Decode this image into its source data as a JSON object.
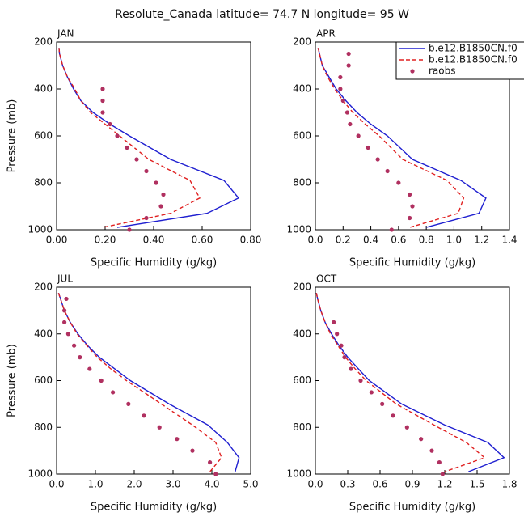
{
  "title": "Resolute_Canada  latitude= 74.7 N longitude= 95 W",
  "chart_data": [
    {
      "type": "line",
      "label": "JAN",
      "xlabel": "Specific Humidity (g/kg)",
      "ylabel": "Pressure (mb)",
      "xlim": [
        0,
        0.8
      ],
      "xticks": [
        {
          "value": 0,
          "label": "0.00"
        },
        {
          "value": 0.2,
          "label": "0.20"
        },
        {
          "value": 0.4,
          "label": "0.40"
        },
        {
          "value": 0.6,
          "label": "0.60"
        },
        {
          "value": 0.8,
          "label": "0.80"
        }
      ],
      "ylim": [
        1000,
        200
      ],
      "yticks": [
        200,
        400,
        600,
        800,
        1000
      ],
      "series": [
        {
          "color": "#1f1fd0",
          "style": "solid",
          "pressure": [
            225,
            250,
            300,
            350,
            400,
            450,
            500,
            550,
            600,
            700,
            790,
            865,
            930,
            990
          ],
          "values": [
            0.01,
            0.012,
            0.025,
            0.045,
            0.07,
            0.1,
            0.15,
            0.22,
            0.3,
            0.47,
            0.69,
            0.75,
            0.62,
            0.25
          ]
        },
        {
          "color": "#e02020",
          "style": "dashed",
          "pressure": [
            225,
            250,
            300,
            350,
            400,
            450,
            500,
            550,
            600,
            700,
            790,
            865,
            930,
            990
          ],
          "values": [
            0.01,
            0.012,
            0.025,
            0.045,
            0.075,
            0.1,
            0.14,
            0.2,
            0.26,
            0.38,
            0.55,
            0.59,
            0.47,
            0.19
          ]
        },
        {
          "color": "#b03060",
          "style": "markers",
          "pressure": [
            400,
            450,
            500,
            550,
            600,
            650,
            700,
            750,
            800,
            850,
            900,
            950,
            1000
          ],
          "values": [
            0.19,
            0.19,
            0.19,
            0.22,
            0.25,
            0.29,
            0.33,
            0.37,
            0.41,
            0.44,
            0.43,
            0.37,
            0.3
          ]
        }
      ]
    },
    {
      "type": "line",
      "label": "APR",
      "xlabel": "Specific Humidity (g/kg)",
      "xlim": [
        0,
        1.4
      ],
      "xticks": [
        {
          "value": 0,
          "label": "0.0"
        },
        0.2,
        0.4,
        0.6,
        0.8,
        {
          "value": 1,
          "label": "1.0"
        },
        1.2,
        1.4
      ],
      "ylim": [
        1000,
        200
      ],
      "yticks": [
        200,
        400,
        600,
        800,
        1000
      ],
      "legend": "upper right",
      "series": [
        {
          "name": "b.e12.B1850CN.f0",
          "color": "#1f1fd0",
          "style": "solid",
          "pressure": [
            225,
            250,
            300,
            350,
            400,
            450,
            500,
            550,
            600,
            700,
            790,
            865,
            930,
            990
          ],
          "values": [
            0.02,
            0.03,
            0.05,
            0.1,
            0.15,
            0.22,
            0.3,
            0.4,
            0.52,
            0.7,
            1.05,
            1.23,
            1.18,
            0.8
          ]
        },
        {
          "name": "b.e12.B1850CN.f0",
          "color": "#e02020",
          "style": "dashed",
          "pressure": [
            225,
            250,
            300,
            350,
            400,
            450,
            500,
            550,
            600,
            700,
            790,
            865,
            930,
            990
          ],
          "values": [
            0.02,
            0.03,
            0.05,
            0.09,
            0.14,
            0.2,
            0.27,
            0.36,
            0.46,
            0.63,
            0.95,
            1.07,
            1.03,
            0.68
          ]
        },
        {
          "name": "raobs",
          "color": "#b03060",
          "style": "markers",
          "pressure": [
            250,
            300,
            350,
            400,
            450,
            500,
            550,
            600,
            650,
            700,
            750,
            800,
            850,
            900,
            950,
            1000
          ],
          "values": [
            0.24,
            0.24,
            0.18,
            0.18,
            0.2,
            0.23,
            0.25,
            0.31,
            0.38,
            0.45,
            0.52,
            0.6,
            0.68,
            0.7,
            0.68,
            0.55
          ]
        }
      ]
    },
    {
      "type": "line",
      "label": "JUL",
      "xlabel": "Specific Humidity (g/kg)",
      "ylabel": "Pressure (mb)",
      "xlim": [
        0,
        5
      ],
      "xticks": [
        {
          "value": 0,
          "label": "0.0"
        },
        {
          "value": 1,
          "label": "1.0"
        },
        {
          "value": 2,
          "label": "2.0"
        },
        {
          "value": 3,
          "label": "3.0"
        },
        {
          "value": 4,
          "label": "4.0"
        },
        {
          "value": 5,
          "label": "5.0"
        }
      ],
      "ylim": [
        1000,
        200
      ],
      "yticks": [
        200,
        400,
        600,
        800,
        1000
      ],
      "series": [
        {
          "color": "#1f1fd0",
          "style": "solid",
          "pressure": [
            225,
            250,
            300,
            350,
            400,
            450,
            500,
            550,
            600,
            700,
            790,
            865,
            930,
            990
          ],
          "values": [
            0.05,
            0.1,
            0.2,
            0.35,
            0.55,
            0.8,
            1.1,
            1.5,
            1.9,
            2.9,
            3.9,
            4.4,
            4.7,
            4.6
          ]
        },
        {
          "color": "#e02020",
          "style": "dashed",
          "pressure": [
            225,
            250,
            300,
            350,
            400,
            450,
            500,
            550,
            600,
            700,
            790,
            865,
            930,
            990
          ],
          "values": [
            0.05,
            0.1,
            0.2,
            0.35,
            0.53,
            0.78,
            1.05,
            1.4,
            1.8,
            2.7,
            3.5,
            4.1,
            4.25,
            3.95
          ]
        },
        {
          "color": "#b03060",
          "style": "markers",
          "pressure": [
            250,
            300,
            350,
            400,
            450,
            500,
            550,
            600,
            650,
            700,
            750,
            800,
            850,
            900,
            950,
            1000
          ],
          "values": [
            0.25,
            0.2,
            0.2,
            0.3,
            0.45,
            0.6,
            0.85,
            1.15,
            1.45,
            1.85,
            2.25,
            2.65,
            3.1,
            3.5,
            3.95,
            4.1
          ]
        }
      ]
    },
    {
      "type": "line",
      "label": "OCT",
      "xlabel": "Specific Humidity (g/kg)",
      "xlim": [
        0,
        1.8
      ],
      "xticks": [
        {
          "value": 0,
          "label": "0.0"
        },
        0.3,
        0.6,
        0.9,
        1.2,
        1.5,
        1.8
      ],
      "ylim": [
        1000,
        200
      ],
      "yticks": [
        200,
        400,
        600,
        800,
        1000
      ],
      "series": [
        {
          "color": "#1f1fd0",
          "style": "solid",
          "pressure": [
            225,
            250,
            300,
            350,
            400,
            450,
            500,
            550,
            600,
            700,
            790,
            865,
            930,
            990
          ],
          "values": [
            0.01,
            0.02,
            0.05,
            0.09,
            0.15,
            0.22,
            0.3,
            0.4,
            0.5,
            0.8,
            1.2,
            1.6,
            1.75,
            1.42
          ]
        },
        {
          "color": "#e02020",
          "style": "dashed",
          "pressure": [
            225,
            250,
            300,
            350,
            400,
            450,
            500,
            550,
            600,
            700,
            790,
            865,
            930,
            990
          ],
          "values": [
            0.01,
            0.02,
            0.05,
            0.09,
            0.14,
            0.21,
            0.28,
            0.37,
            0.47,
            0.75,
            1.1,
            1.4,
            1.57,
            1.2
          ]
        },
        {
          "color": "#b03060",
          "style": "markers",
          "pressure": [
            350,
            400,
            450,
            500,
            550,
            600,
            650,
            700,
            750,
            800,
            850,
            900,
            950,
            1000
          ],
          "values": [
            0.17,
            0.2,
            0.24,
            0.27,
            0.33,
            0.42,
            0.52,
            0.62,
            0.72,
            0.85,
            0.98,
            1.08,
            1.15,
            1.18
          ]
        }
      ]
    }
  ]
}
